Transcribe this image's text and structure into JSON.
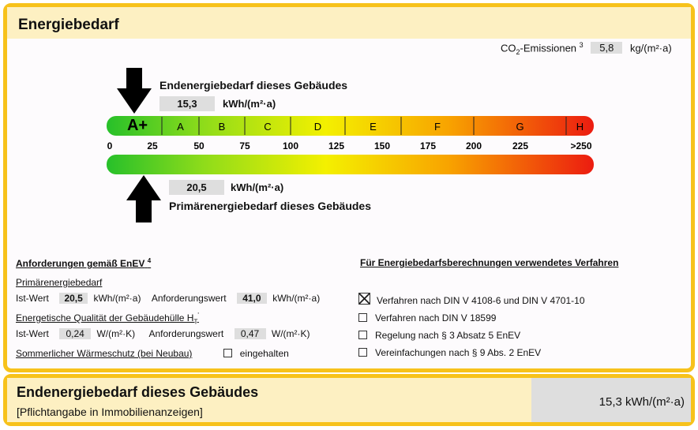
{
  "header": {
    "title": "Energiebedarf"
  },
  "co2": {
    "label": "CO",
    "sub": "2",
    "label_rest": "-Emissionen",
    "note": "3",
    "value": "5,8",
    "unit": "kg/(m²·a)"
  },
  "endenergie": {
    "label": "Endenergiebedarf dieses Gebäudes",
    "value": "15,3",
    "unit": "kWh/(m²·a)"
  },
  "primaerenergie": {
    "label": "Primärenergiebedarf dieses Gebäudes",
    "value": "20,5",
    "unit": "kWh/(m²·a)"
  },
  "scale": {
    "classes": [
      "A+",
      "A",
      "B",
      "C",
      "D",
      "E",
      "F",
      "G",
      "H"
    ],
    "ticks": [
      "0",
      "25",
      "50",
      "75",
      "100",
      "125",
      "150",
      "175",
      "200",
      "225",
      ">250"
    ]
  },
  "requirements": {
    "title": "Anforderungen gemäß EnEV",
    "note": "4",
    "primary": {
      "heading": "Primärenergiebedarf",
      "ist_label": "Ist-Wert",
      "ist_value": "20,5",
      "ist_unit": "kWh/(m²·a)",
      "req_label": "Anforderungswert",
      "req_value": "41,0",
      "req_unit": "kWh/(m²·a)"
    },
    "envelope": {
      "heading": "Energetische Qualität der Gebäudehülle H",
      "sub": "T",
      "mark": "'",
      "ist_label": "Ist-Wert",
      "ist_value": "0,24",
      "ist_unit": "W/(m²·K)",
      "req_label": "Anforderungswert",
      "req_value": "0,47",
      "req_unit": "W/(m²·K)"
    },
    "summer": {
      "label": "Sommerlicher Wärmeschutz (bei Neubau)",
      "check": "eingehalten"
    }
  },
  "method": {
    "title": "Für Energiebedarfsberechnungen verwendetes Verfahren",
    "options": [
      "Verfahren nach DIN V 4108-6 und DIN V 4701-10",
      "Verfahren nach DIN V 18599",
      "Regelung nach § 3 Absatz 5 EnEV",
      "Vereinfachungen nach § 9 Abs. 2 EnEV"
    ]
  },
  "footer": {
    "title": "Endenergiebedarf dieses Gebäudes",
    "subtitle": "[Pflichtangabe in Immobilienanzeigen]",
    "value": "15,3 kWh/(m²·a)"
  }
}
